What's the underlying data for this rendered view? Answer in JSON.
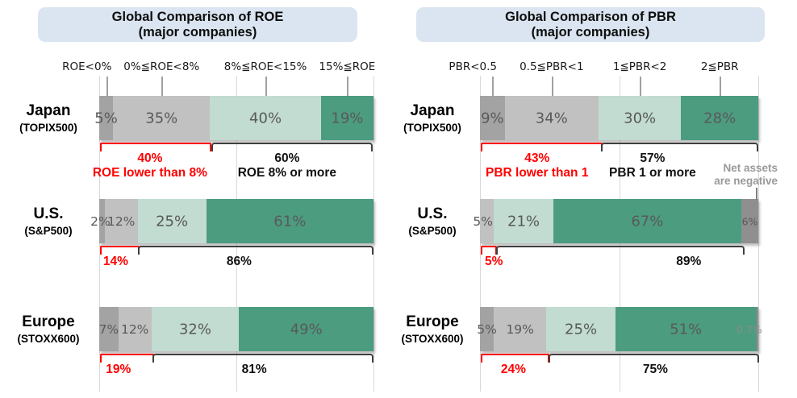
{
  "colors": {
    "gray_dark": "#a3a3a3",
    "gray_light": "#c1c1c1",
    "green_light": "#c2dcd1",
    "teal": "#4c9c80",
    "neg_gray": "#8f8f8f",
    "label_gray": "#595959",
    "red": "#ff0000",
    "bracket_black": "#3f3f3f",
    "title_bg": "#dbe5f1",
    "gridline": "#d9d9d9",
    "note_gray": "#999999"
  },
  "chart_data": [
    {
      "type": "bar",
      "stacked": true,
      "orientation": "horizontal",
      "xlim": [
        0,
        100
      ],
      "grid": "vertical lines at 0/50/100%",
      "title_line1": "Global Comparison of ROE",
      "title_line2": "(major companies)",
      "categories": [
        "ROE<0%",
        "0%≦ROE<8%",
        "8%≦ROE<15%",
        "15%≦ROE"
      ],
      "rows": [
        {
          "label": "Japan",
          "sublabel": "(TOPIX500)",
          "segments": [
            {
              "value": 5,
              "label": "5%",
              "color": "gray_dark"
            },
            {
              "value": 35,
              "label": "35%",
              "color": "gray_light"
            },
            {
              "value": 40,
              "label": "40%",
              "color": "green_light"
            },
            {
              "value": 19,
              "label": "19%",
              "color": "teal"
            }
          ],
          "group_red": {
            "from": 0.3,
            "to": 39.8,
            "total": "40%",
            "caption": "ROE lower than 8%",
            "tx": 18.5
          },
          "group_black": {
            "from": 40.8,
            "to": 98.5,
            "total": "60%",
            "caption": "ROE 8% or more",
            "tx": 68.5
          }
        },
        {
          "label": "U.S.",
          "sublabel": "(S&P500)",
          "segments": [
            {
              "value": 2,
              "label": "2%",
              "color": "gray_dark",
              "size": "small",
              "dx": -2
            },
            {
              "value": 12,
              "label": "12%",
              "color": "gray_light",
              "size": "small"
            },
            {
              "value": 25,
              "label": "25%",
              "color": "green_light"
            },
            {
              "value": 61,
              "label": "61%",
              "color": "teal"
            }
          ],
          "group_red": {
            "from": 0.3,
            "to": 13.5,
            "total": "14%",
            "tx": 6
          },
          "group_black": {
            "from": 14.2,
            "to": 98.8,
            "total": "86%",
            "tx": 51
          }
        },
        {
          "label": "Europe",
          "sublabel": "(STOXX600)",
          "segments": [
            {
              "value": 7,
              "label": "7%",
              "color": "gray_dark",
              "size": "small"
            },
            {
              "value": 12,
              "label": "12%",
              "color": "gray_light",
              "size": "small"
            },
            {
              "value": 32,
              "label": "32%",
              "color": "green_light"
            },
            {
              "value": 49,
              "label": "49%",
              "color": "teal"
            }
          ],
          "group_red": {
            "from": 0.3,
            "to": 18.8,
            "total": "19%",
            "tx": 7
          },
          "group_black": {
            "from": 19.5,
            "to": 98.8,
            "total": "81%",
            "tx": 56.5
          }
        }
      ]
    },
    {
      "type": "bar",
      "stacked": true,
      "orientation": "horizontal",
      "xlim": [
        0,
        100
      ],
      "grid": "vertical lines at 0/50/100%",
      "title_line1": "Global Comparison of PBR",
      "title_line2": "(major companies)",
      "categories": [
        "PBR<0.5",
        "0.5≦PBR<1",
        "1≦PBR<2",
        "2≦PBR"
      ],
      "note": {
        "line1": "Net assets",
        "line2": "are negative"
      },
      "rows": [
        {
          "label": "Japan",
          "sublabel": "(TOPIX500)",
          "segments": [
            {
              "value": 9,
              "label": "9%",
              "color": "gray_dark"
            },
            {
              "value": 34,
              "label": "34%",
              "color": "gray_light"
            },
            {
              "value": 30,
              "label": "30%",
              "color": "green_light"
            },
            {
              "value": 28,
              "label": "28%",
              "color": "teal"
            }
          ],
          "group_red": {
            "from": 0.3,
            "to": 42.8,
            "total": "43%",
            "caption": "PBR lower than 1",
            "tx": 20.5
          },
          "group_black": {
            "from": 43.5,
            "to": 98.8,
            "total": "57%",
            "caption": "PBR 1 or more",
            "tx": 62
          }
        },
        {
          "label": "U.S.",
          "sublabel": "(S&P500)",
          "segments": [
            {
              "value": 5,
              "label": "5%",
              "color": "gray_light",
              "size": "small",
              "dx": -5
            },
            {
              "value": 21,
              "label": "21%",
              "color": "green_light"
            },
            {
              "value": 67,
              "label": "67%",
              "color": "teal"
            },
            {
              "value": 6,
              "label": "6%",
              "color": "neg_gray",
              "size": "tiny"
            }
          ],
          "group_red": {
            "from": 0.3,
            "to": 5,
            "total": "5%",
            "tx": 5
          },
          "group_black": {
            "from": 5.8,
            "to": 94,
            "total": "89%",
            "tx": 75
          }
        },
        {
          "label": "Europe",
          "sublabel": "(STOXX600)",
          "segments": [
            {
              "value": 5,
              "label": "5%",
              "color": "gray_dark",
              "size": "small"
            },
            {
              "value": 19,
              "label": "19%",
              "color": "gray_light",
              "size": "small"
            },
            {
              "value": 25,
              "label": "25%",
              "color": "green_light"
            },
            {
              "value": 51,
              "label": "51%",
              "color": "teal"
            },
            {
              "value": 0.7,
              "label": "0.7%",
              "color": "neg_gray",
              "size": "tiny",
              "dx": -10,
              "label_color": "#8c8c8c"
            }
          ],
          "group_red": {
            "from": 0.3,
            "to": 23.8,
            "total": "24%",
            "tx": 12
          },
          "group_black": {
            "from": 24.5,
            "to": 99,
            "total": "75%",
            "tx": 63
          }
        }
      ]
    }
  ]
}
